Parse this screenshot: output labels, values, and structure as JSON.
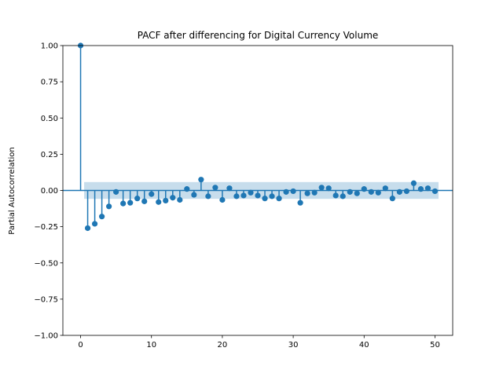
{
  "chart_data": {
    "type": "scatter",
    "title": "PACF after differencing for Digital Currency Volume",
    "xlabel": "",
    "ylabel": "Partial Autocorrelation",
    "xlim": [
      -2.5,
      52.5
    ],
    "ylim": [
      -1.0,
      1.0
    ],
    "xticks": [
      0,
      10,
      20,
      30,
      40,
      50
    ],
    "yticks": [
      -1.0,
      -0.75,
      -0.5,
      -0.25,
      0.0,
      0.25,
      0.5,
      0.75,
      1.0
    ],
    "xtick_labels": [
      "0",
      "10",
      "20",
      "30",
      "40",
      "50"
    ],
    "ytick_labels": [
      "−1.00",
      "−0.75",
      "−0.50",
      "−0.25",
      "0.00",
      "0.25",
      "0.50",
      "0.75",
      "1.00"
    ],
    "confidence_band": [
      -0.058,
      0.058
    ],
    "grid": false,
    "colors": {
      "marker": "#1f77b4",
      "band": "#1f77b4",
      "zero_line": "#1f77b4"
    },
    "x": [
      0,
      1,
      2,
      3,
      4,
      5,
      6,
      7,
      8,
      9,
      10,
      11,
      12,
      13,
      14,
      15,
      16,
      17,
      18,
      19,
      20,
      21,
      22,
      23,
      24,
      25,
      26,
      27,
      28,
      29,
      30,
      31,
      32,
      33,
      34,
      35,
      36,
      37,
      38,
      39,
      40,
      41,
      42,
      43,
      44,
      45,
      46,
      47,
      48,
      49,
      50
    ],
    "values": [
      1.0,
      -0.26,
      -0.23,
      -0.18,
      -0.11,
      -0.01,
      -0.09,
      -0.085,
      -0.055,
      -0.075,
      -0.025,
      -0.08,
      -0.07,
      -0.05,
      -0.065,
      0.01,
      -0.03,
      0.075,
      -0.04,
      0.02,
      -0.065,
      0.015,
      -0.04,
      -0.035,
      -0.015,
      -0.035,
      -0.055,
      -0.04,
      -0.055,
      -0.01,
      -0.005,
      -0.085,
      -0.02,
      -0.015,
      0.02,
      0.015,
      -0.035,
      -0.04,
      -0.01,
      -0.02,
      0.01,
      -0.01,
      -0.015,
      0.015,
      -0.055,
      -0.01,
      -0.005,
      0.05,
      0.01,
      0.015,
      -0.005
    ]
  }
}
